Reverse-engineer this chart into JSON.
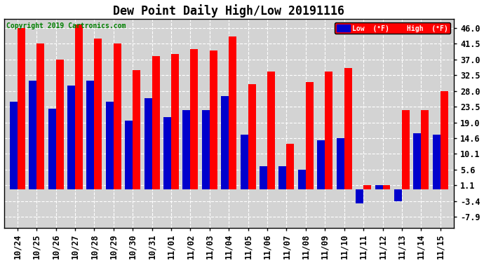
{
  "title": "Dew Point Daily High/Low 20191116",
  "copyright": "Copyright 2019 Cartronics.com",
  "dates": [
    "10/24",
    "10/25",
    "10/26",
    "10/27",
    "10/28",
    "10/29",
    "10/30",
    "10/31",
    "11/01",
    "11/02",
    "11/03",
    "11/04",
    "11/05",
    "11/06",
    "11/07",
    "11/08",
    "11/09",
    "11/10",
    "11/11",
    "11/12",
    "11/13",
    "11/14",
    "11/15"
  ],
  "high": [
    46.0,
    41.5,
    37.0,
    47.0,
    43.0,
    41.5,
    34.0,
    38.0,
    38.5,
    40.0,
    39.5,
    43.5,
    30.0,
    33.5,
    13.0,
    30.5,
    33.5,
    34.5,
    1.1,
    1.1,
    22.5,
    22.5,
    28.0
  ],
  "low": [
    25.0,
    31.0,
    23.0,
    29.5,
    31.0,
    25.0,
    19.5,
    26.0,
    20.5,
    22.5,
    22.5,
    26.5,
    15.5,
    6.5,
    6.5,
    5.5,
    14.0,
    14.5,
    -4.0,
    1.1,
    -3.4,
    16.0,
    15.5
  ],
  "high_color": "#ff0000",
  "low_color": "#0000cc",
  "bg_color": "#ffffff",
  "plot_bg": "#d3d3d3",
  "grid_color": "#ffffff",
  "yticks": [
    -7.9,
    -3.4,
    1.1,
    5.6,
    10.1,
    14.6,
    19.0,
    23.5,
    28.0,
    32.5,
    37.0,
    41.5,
    46.0
  ],
  "ylim": [
    -11.0,
    48.5
  ],
  "title_fontsize": 12,
  "tick_fontsize": 8.5,
  "legend_low_label": "Low  (°F)",
  "legend_high_label": "High  (°F)"
}
